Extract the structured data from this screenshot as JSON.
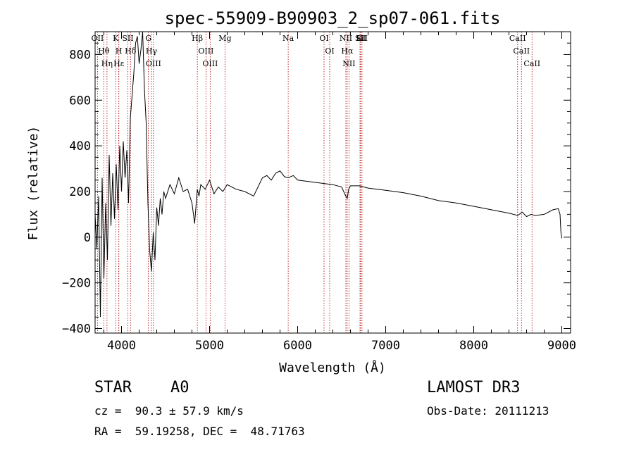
{
  "chart_data": {
    "type": "line",
    "title": "spec-55909-B90903_2_sp07-061.fits",
    "xlabel": "Wavelength (Å)",
    "ylabel": "Flux (relative)",
    "xlim": [
      3700,
      9100
    ],
    "ylim": [
      -420,
      900
    ],
    "xticks": [
      4000,
      5000,
      6000,
      7000,
      8000,
      9000
    ],
    "yticks": [
      -400,
      -200,
      0,
      200,
      400,
      600,
      800
    ],
    "grid": false,
    "series": [
      {
        "name": "flux",
        "x": [
          3700,
          3720,
          3740,
          3760,
          3780,
          3800,
          3820,
          3840,
          3860,
          3880,
          3900,
          3920,
          3940,
          3960,
          3980,
          4000,
          4020,
          4040,
          4060,
          4080,
          4100,
          4120,
          4140,
          4160,
          4180,
          4200,
          4220,
          4240,
          4260,
          4280,
          4300,
          4320,
          4340,
          4360,
          4380,
          4400,
          4420,
          4440,
          4460,
          4480,
          4500,
          4550,
          4600,
          4650,
          4700,
          4750,
          4800,
          4830,
          4861,
          4880,
          4900,
          4950,
          5000,
          5050,
          5100,
          5150,
          5200,
          5300,
          5400,
          5500,
          5600,
          5650,
          5700,
          5750,
          5800,
          5850,
          5893,
          5950,
          6000,
          6100,
          6200,
          6300,
          6400,
          6500,
          6540,
          6563,
          6580,
          6600,
          6700,
          6800,
          7000,
          7200,
          7400,
          7600,
          7800,
          8000,
          8200,
          8400,
          8500,
          8550,
          8600,
          8650,
          8700,
          8800,
          8900,
          8960,
          8980,
          8990,
          9000
        ],
        "values": [
          100,
          -50,
          180,
          -350,
          260,
          -180,
          150,
          -100,
          360,
          50,
          280,
          80,
          320,
          120,
          400,
          200,
          420,
          260,
          380,
          150,
          520,
          620,
          720,
          850,
          880,
          760,
          820,
          900,
          650,
          500,
          150,
          -60,
          -150,
          20,
          -100,
          130,
          50,
          170,
          100,
          200,
          170,
          230,
          190,
          260,
          200,
          210,
          150,
          60,
          210,
          180,
          230,
          210,
          250,
          190,
          220,
          200,
          230,
          210,
          200,
          180,
          260,
          270,
          250,
          280,
          290,
          265,
          260,
          270,
          250,
          245,
          240,
          235,
          230,
          220,
          185,
          170,
          210,
          225,
          225,
          215,
          205,
          195,
          180,
          160,
          150,
          135,
          120,
          105,
          95,
          110,
          90,
          100,
          95,
          100,
          120,
          125,
          100,
          20,
          -5
        ]
      }
    ],
    "line_markers": [
      {
        "label": "Hδ",
        "x": 4102
      },
      {
        "label": "K",
        "x": 3934
      },
      {
        "label": "H",
        "x": 3969
      },
      {
        "label": "Hε",
        "x": 3970
      },
      {
        "label": "Hη",
        "x": 3835
      },
      {
        "label": "Hθ",
        "x": 3798
      },
      {
        "label": "OII",
        "x": 3727
      },
      {
        "label": "OIII",
        "x": 4363
      },
      {
        "label": "Hγ",
        "x": 4340
      },
      {
        "label": "G",
        "x": 4305
      },
      {
        "label": "Hβ",
        "x": 4861
      },
      {
        "label": "OIII",
        "x": 4959
      },
      {
        "label": "OIII",
        "x": 5007
      },
      {
        "label": "Mg",
        "x": 5175
      },
      {
        "label": "Na",
        "x": 5893
      },
      {
        "label": "OI",
        "x": 6300
      },
      {
        "label": "OI",
        "x": 6364
      },
      {
        "label": "Hα",
        "x": 6563
      },
      {
        "label": "NII",
        "x": 6548
      },
      {
        "label": "NII",
        "x": 6583
      },
      {
        "label": "SII",
        "x": 6716
      },
      {
        "label": "SII",
        "x": 6731
      },
      {
        "label": "Li",
        "x": 6708
      },
      {
        "label": "SII",
        "x": 4072
      },
      {
        "label": "CaII",
        "x": 8498
      },
      {
        "label": "CaII",
        "x": 8542
      },
      {
        "label": "CaII",
        "x": 8662
      }
    ]
  },
  "info": {
    "object_class": "STAR",
    "subclass": "A0",
    "survey": "LAMOST DR3",
    "redshift": "cz =  90.3 ± 57.9 km/s",
    "obs_date": "Obs-Date: 20111213",
    "coordinates": "RA =  59.19258, DEC =  48.71763"
  }
}
